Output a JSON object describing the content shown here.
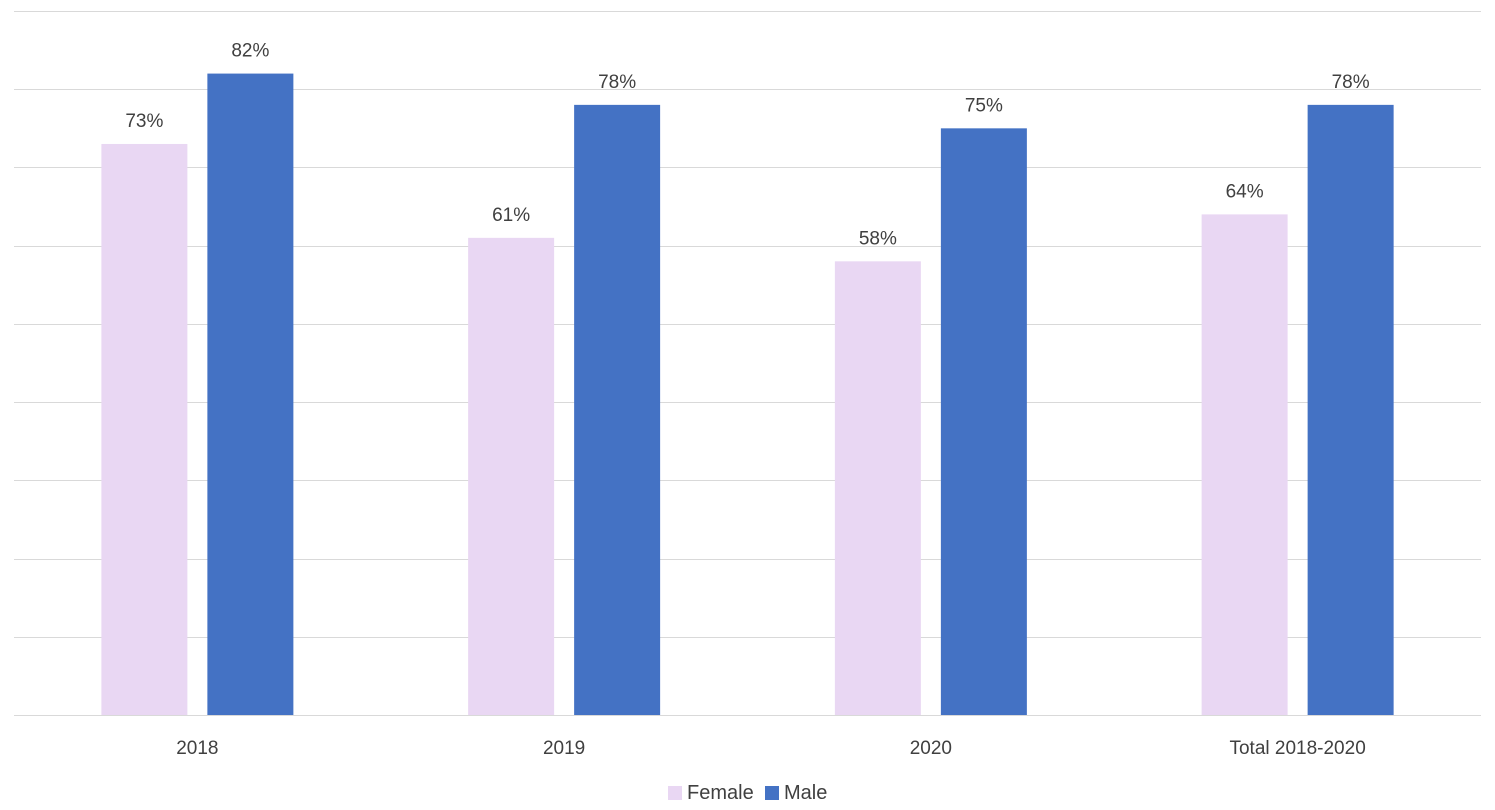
{
  "chart_data": {
    "type": "bar",
    "title": "",
    "xlabel": "",
    "ylabel": "",
    "categories": [
      "2018",
      "2019",
      "2020",
      "Total 2018-2020"
    ],
    "series": [
      {
        "name": "Female",
        "color": "#e9d7f3",
        "values": [
          73,
          61,
          58,
          64
        ],
        "labels": [
          "73%",
          "61%",
          "58%",
          "64%"
        ]
      },
      {
        "name": "Male",
        "color": "#4472c4",
        "values": [
          82,
          78,
          75,
          78
        ],
        "labels": [
          "82%",
          "78%",
          "75%",
          "78%"
        ]
      }
    ],
    "ylim": [
      0,
      90
    ],
    "y_tick_step": 10,
    "y_tick_labels_visible": false,
    "grid": true,
    "legend_position": "bottom-center"
  }
}
